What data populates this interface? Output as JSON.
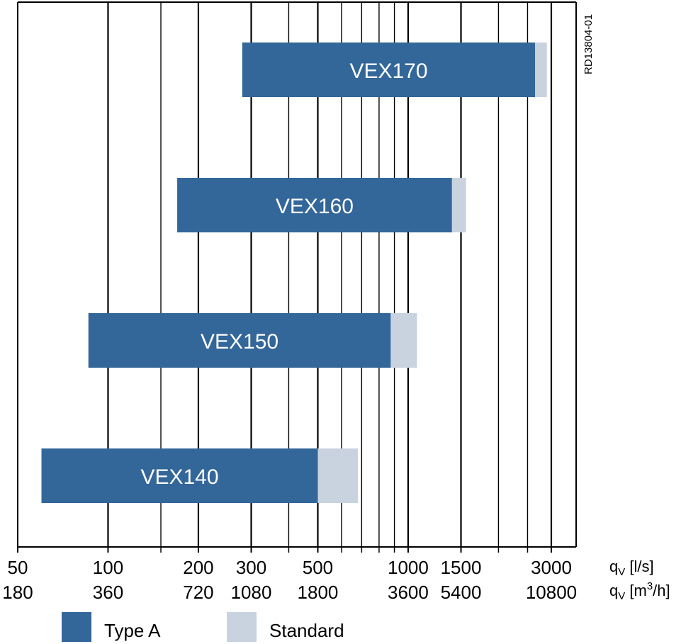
{
  "chart_data": {
    "type": "bar",
    "orientation": "horizontal",
    "x_scale": "log",
    "xlim": [
      50,
      3500
    ],
    "x_major_ticks": [
      50,
      100,
      200,
      300,
      500,
      1000,
      1500,
      3000
    ],
    "x_minor_ticks": [
      150,
      400,
      600,
      700,
      800,
      900,
      2000,
      2500
    ],
    "x_tick_labels_ls": [
      "50",
      "100",
      "200",
      "300",
      "500",
      "1000",
      "1500",
      "3000"
    ],
    "x_tick_labels_m3h": [
      "180",
      "360",
      "720",
      "1080",
      "1800",
      "3600",
      "5400",
      "10800"
    ],
    "x_unit_ls": {
      "q": "q",
      "sub": "V",
      "rest": " [l/s]"
    },
    "x_unit_m3h": {
      "q": "q",
      "sub": "V",
      "rest": " [m",
      "sup": "3",
      "end": "/h]"
    },
    "drawing_code": "RD13804-01",
    "categories": [
      "VEX170",
      "VEX160",
      "VEX150",
      "VEX140"
    ],
    "series": [
      {
        "name": "Type A",
        "color": "#336699",
        "ranges": [
          [
            280,
            2650
          ],
          [
            170,
            1400
          ],
          [
            86,
            875
          ],
          [
            60,
            500
          ]
        ]
      },
      {
        "name": "Standard",
        "color": "#c9d3e0",
        "ranges": [
          [
            2650,
            2900
          ],
          [
            1400,
            1560
          ],
          [
            875,
            1070
          ],
          [
            500,
            680
          ]
        ]
      }
    ],
    "legend": {
      "placement": "bottom-left",
      "items": [
        "Type A",
        "Standard"
      ]
    }
  }
}
